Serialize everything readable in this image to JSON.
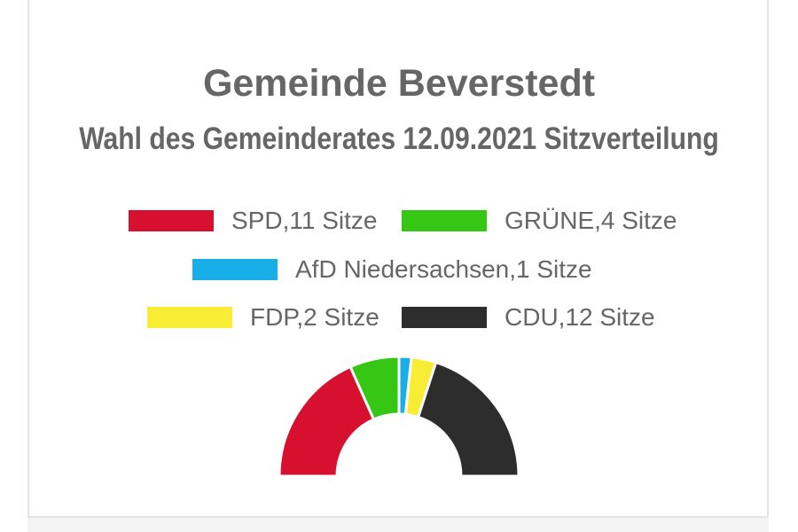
{
  "chart_data": {
    "type": "pie",
    "subtype": "parliament-semicircle",
    "title": "Gemeinde Beverstedt",
    "subtitle": "Wahl des Gemeinderates 12.09.2021 Sitzverteilung",
    "legend_position": "top",
    "series": [
      {
        "name": "SPD",
        "label": "SPD,11 Sitze",
        "value": 11,
        "color": "#d6102e"
      },
      {
        "name": "GRÜNE",
        "label": "GRÜNE,4 Sitze",
        "value": 4,
        "color": "#35c714"
      },
      {
        "name": "AfD Niedersachsen",
        "label": "AfD Niedersachsen,1 Sitze",
        "value": 1,
        "color": "#18aee8"
      },
      {
        "name": "FDP",
        "label": "FDP,2 Sitze",
        "value": 2,
        "color": "#f8ec34"
      },
      {
        "name": "CDU",
        "label": "CDU,12 Sitze",
        "value": 12,
        "color": "#2d2d2d"
      }
    ]
  }
}
